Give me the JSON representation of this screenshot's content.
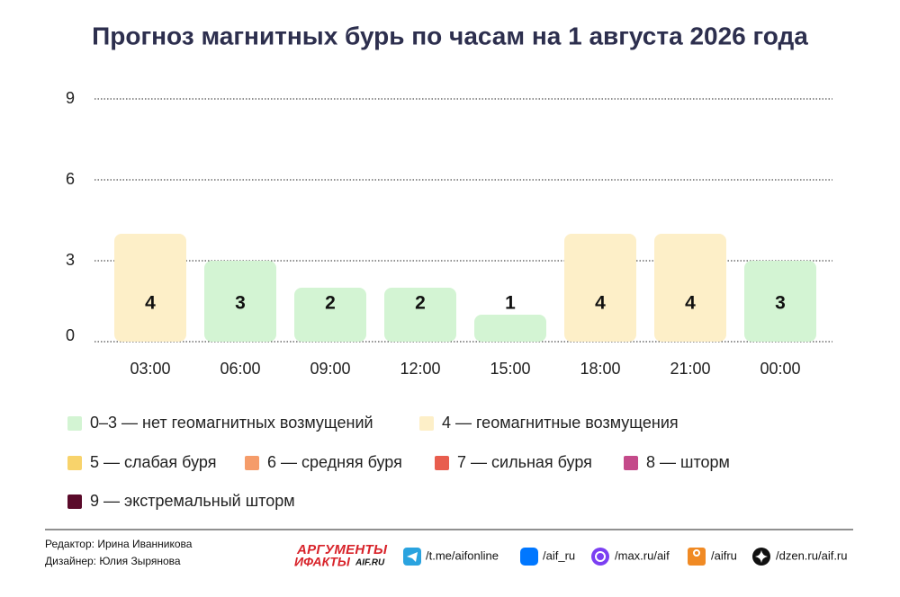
{
  "chart_data": {
    "type": "bar",
    "title": "Прогноз магнитных бурь по часам на 1 августа 2026 года",
    "categories": [
      "03:00",
      "06:00",
      "09:00",
      "12:00",
      "15:00",
      "18:00",
      "21:00",
      "00:00"
    ],
    "values": [
      4,
      3,
      2,
      2,
      1,
      4,
      4,
      3
    ],
    "colors": [
      "#fdefc8",
      "#d3f4d3",
      "#d3f4d3",
      "#d3f4d3",
      "#d3f4d3",
      "#fdefc8",
      "#fdefc8",
      "#d3f4d3"
    ],
    "ylim": [
      0,
      9
    ],
    "yticks": [
      0,
      3,
      6,
      9
    ],
    "grid": true,
    "legend": [
      {
        "label": "0–3 — нет геомагнитных возмущений",
        "color": "#d3f4d3"
      },
      {
        "label": "4 — геомагнитные возмущения",
        "color": "#fdefc8"
      },
      {
        "label": "5 — слабая буря",
        "color": "#f8d36b"
      },
      {
        "label": "6 — средняя буря",
        "color": "#f59c6a"
      },
      {
        "label": "7 — сильная буря",
        "color": "#e85d4e"
      },
      {
        "label": "8 — шторм",
        "color": "#c44a8a"
      },
      {
        "label": "9 — экстремальный шторм",
        "color": "#5a0a2a"
      }
    ]
  },
  "footer": {
    "credits": [
      "Редактор: Ирина Иванникова",
      "Дизайнер: Юлия Зырянова"
    ],
    "logo": [
      "АРГУМЕНТЫ",
      "ИФАКТЫ",
      "AIF.RU"
    ],
    "links": [
      "/t.me/aifonline",
      "/aif_ru",
      "/max.ru/aif",
      "/aifru",
      "/dzen.ru/aif.ru"
    ]
  }
}
